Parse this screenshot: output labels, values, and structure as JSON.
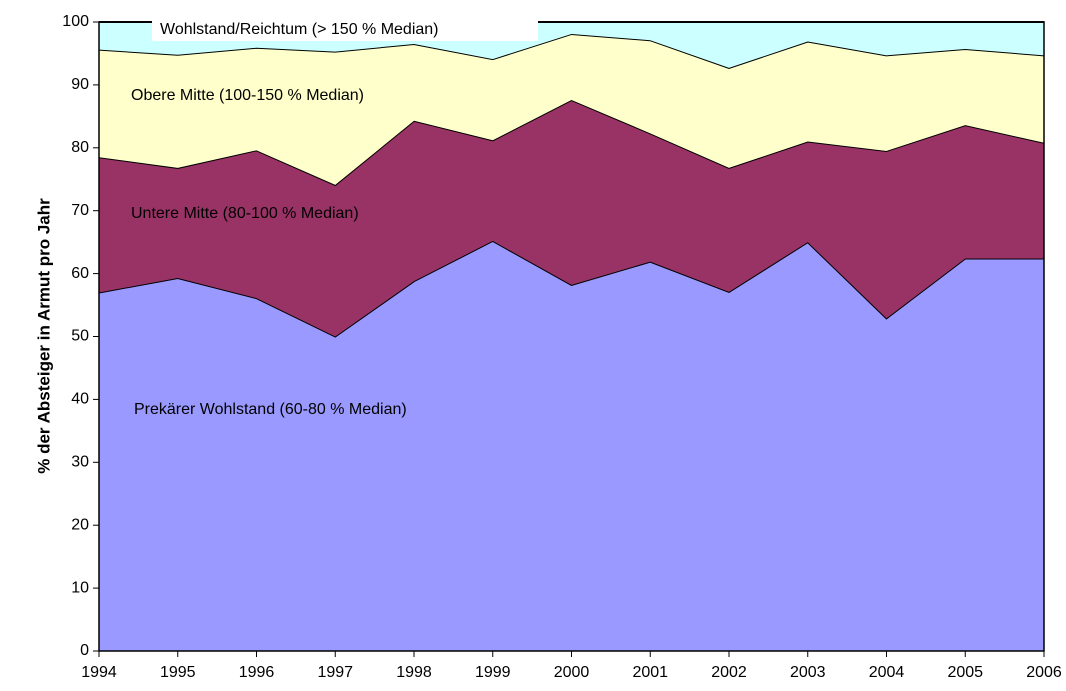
{
  "chart_data": {
    "type": "stacked-area",
    "y_label": "% der Absteiger in Armut pro Jahr",
    "categories": [
      "1994",
      "1995",
      "1996",
      "1997",
      "1998",
      "1999",
      "2000",
      "2001",
      "2002",
      "2003",
      "2004",
      "2005",
      "2006"
    ],
    "series": [
      {
        "name": "Prekärer Wohlstand (60-80 % Median)",
        "color": "#9999ff",
        "values": [
          57,
          59.3,
          56.1,
          50,
          58.8,
          65.2,
          58.2,
          61.9,
          57.1,
          65,
          52.9,
          62.4,
          62.4
        ]
      },
      {
        "name": "Untere Mitte (80-100 % Median)",
        "color": "#993366",
        "values": [
          21.5,
          17.5,
          23.5,
          24.1,
          25.5,
          16,
          29.4,
          20.4,
          19.7,
          16,
          26.6,
          21.2,
          18.4
        ]
      },
      {
        "name": "Obere Mitte (100-150 % Median)",
        "color": "#ffffcc",
        "values": [
          17.1,
          18,
          16.3,
          21.2,
          12.2,
          12.9,
          10.5,
          14.8,
          15.9,
          15.9,
          15.2,
          12.1,
          13.9
        ]
      },
      {
        "name": "Wohlstand/Reichtum (> 150 % Median)",
        "color": "#ccffff",
        "values": [
          4.4,
          5.2,
          4.1,
          4.7,
          3.5,
          5.9,
          1.9,
          2.9,
          7.3,
          3.1,
          5.3,
          4.3,
          5.3
        ]
      }
    ],
    "ylim": [
      0,
      100
    ],
    "yticks": [
      0,
      10,
      20,
      30,
      40,
      50,
      60,
      70,
      80,
      90,
      100
    ]
  }
}
